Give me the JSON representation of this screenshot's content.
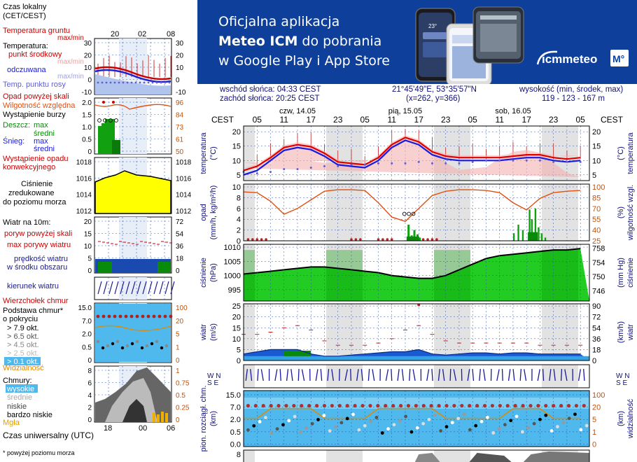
{
  "banner": {
    "line1": "Oficjalna aplikacja",
    "line2_bold": "Meteo ICM",
    "line2_rest": " do pobrania",
    "line3": "w Google Play i App Store",
    "logo_text": "icmmeteo",
    "logo_badge": "M°",
    "phone_temp": "23°"
  },
  "info": {
    "sunrise": "wschód słońca: 04:33 CEST",
    "sunset": "zachód słońca: 20:25 CEST",
    "coords": "21°45'49\"E, 53°35'57\"N",
    "grid": "(x=262, y=366)",
    "elev_label": "wysokość (min, środek, max)",
    "elev_values": "119 - 123 - 167 m"
  },
  "legend": {
    "local_time": "Czas lokalny",
    "local_time_2": "(CET/CEST)",
    "local_ticks": [
      "20",
      "02",
      "08"
    ],
    "utc_label": "Czas uniwersalny (UTC)",
    "utc_ticks": [
      "18",
      "00",
      "06"
    ],
    "footnote": "* powyżej poziomu morza",
    "temp": {
      "ground": "Temperatura gruntu",
      "maxmin": "max/min",
      "title": "Temperatura:",
      "mid": "punkt środkowy",
      "maxmin2": "max/min",
      "feel": "odczuwana",
      "maxmin3": "max/min",
      "dew": "Temp. punktu rosy",
      "ticks_left": [
        "30",
        "20",
        "10",
        "0",
        "-10"
      ],
      "ticks_right": [
        "30",
        "20",
        "10",
        "0",
        "-10"
      ]
    },
    "precip": {
      "over": "Opad powyżej skali",
      "humidity": "Wilgotność względna",
      "storm": "Wystąpienie burzy",
      "rain_label": "Deszcz:",
      "rain_max": "max",
      "rain_mid": "średni",
      "snow_label": "Śnieg:",
      "snow_max": "max",
      "snow_mid": "średni",
      "occurrence": "Wystąpienie opadu",
      "convective": "konwekcyjnego",
      "ticks_left": [
        "2.0",
        "1.5",
        "1.0",
        "0.5",
        "0"
      ],
      "ticks_right": [
        "96",
        "84",
        "73",
        "61",
        "50"
      ]
    },
    "pressure": {
      "l1": "Ciśnienie",
      "l2": "zredukowane",
      "l3": "do poziomu morza",
      "ticks_left": [
        "1018",
        "1016",
        "1014",
        "1012"
      ],
      "ticks_right": [
        "1018",
        "1016",
        "1014",
        "1012"
      ]
    },
    "wind": {
      "title": "Wiatr na 10m:",
      "over": "poryw powyżej skali",
      "gust": "max porywy wiatru",
      "speed": "prędkość wiatru",
      "area": "w środku obszaru",
      "ticks_left": [
        "20",
        "15",
        "10",
        "5",
        "0"
      ],
      "ticks_right": [
        "72",
        "54",
        "36",
        "18",
        "0"
      ]
    },
    "direction": "kierunek wiatru",
    "clouds": {
      "top": "Wierzchołek chmur",
      "base": "Podstawa chmur*",
      "cover": "o pokryciu",
      "o79": "> 7.9 okt.",
      "o65": "> 6.5 okt.",
      "o45": "> 4.5 okt.",
      "o25": "> 2.5 okt.",
      "o01": "> 0.1 okt.",
      "visibility": "Widzialność",
      "ticks_left": [
        "15.0",
        "7.0",
        "2.0",
        "0.5",
        "0"
      ],
      "ticks_right": [
        "100",
        "20",
        "5",
        "1",
        "0"
      ]
    },
    "layers": {
      "title": "Chmury:",
      "high": "wysokie",
      "mid": "średnie",
      "low": "niskie",
      "vlow": "bardzo niskie",
      "fog": "Mgła",
      "ticks_left": [
        "8",
        "6",
        "4",
        "2",
        "0"
      ],
      "ticks_right": [
        "1",
        "0.75",
        "0.5",
        "0.25",
        "0"
      ]
    }
  },
  "main": {
    "cest": "CEST",
    "days": [
      "czw, 14.05",
      "pią, 15.05",
      "sob, 16.05"
    ],
    "hour_ticks": [
      "05",
      "11",
      "17",
      "23",
      "05",
      "11",
      "17",
      "23",
      "05",
      "11",
      "17",
      "23",
      "05"
    ],
    "temp": {
      "label_l": "temperatura",
      "unit_l": "(°C)",
      "label_r": "temperatura",
      "unit_r": "(°C)",
      "ticks": [
        "20",
        "15",
        "10",
        "5"
      ]
    },
    "precip": {
      "label_l": "opad",
      "unit_l": "(mm/h, kg/m²/h)",
      "label_r": "wilgotność wzgl.",
      "unit_r": "(%)",
      "ticks_l": [
        "10",
        "8",
        "6",
        "4",
        "2",
        "0"
      ],
      "ticks_r": [
        "100",
        "85",
        "70",
        "55",
        "40",
        "25"
      ]
    },
    "pressure": {
      "label_l": "ciśnienie",
      "unit_l": "(hPa)",
      "label_r": "ciśnienie",
      "unit_r": "(mm Hg)",
      "ticks_l": [
        "1010",
        "1005",
        "1000",
        "995"
      ],
      "ticks_r": [
        "758",
        "754",
        "750",
        "746"
      ]
    },
    "wind": {
      "label_l": "wiatr",
      "unit_l": "(m/s)",
      "label_r": "wiatr",
      "unit_r": "(km/h)",
      "ticks_l": [
        "25",
        "20",
        "15",
        "10",
        "5",
        "0"
      ],
      "ticks_r": [
        "90",
        "72",
        "54",
        "36",
        "18",
        "0"
      ]
    },
    "dir": {
      "label": "W N",
      "label2": "S E"
    },
    "clouds": {
      "label_l": "pion. rozciągł. chm.",
      "unit_l": "(km)",
      "label_r": "widzialność",
      "unit_r": "(km)",
      "ticks_l": [
        "15.0",
        "7.0",
        "2.0",
        "0.5",
        "0.0"
      ],
      "ticks_r": [
        "100",
        "20",
        "5",
        "1",
        "0"
      ]
    },
    "layers": {
      "ticks_l": [
        "8"
      ]
    }
  },
  "chart_data": {
    "type": "line",
    "title": "",
    "x_hours_local": [
      2,
      5,
      8,
      11,
      14,
      17,
      20,
      23,
      26,
      29,
      32,
      35,
      38,
      41,
      44,
      47,
      50,
      53,
      56,
      59,
      62,
      65,
      68,
      71,
      74,
      77
    ],
    "temperature_mid": [
      6.5,
      8,
      11,
      14.5,
      15.5,
      14.8,
      12.5,
      9.5,
      9,
      8.5,
      11,
      15.5,
      18,
      16.5,
      13,
      11.5,
      11,
      11,
      11,
      11,
      11.5,
      12,
      12,
      11,
      10.5,
      11
    ],
    "temperature_feel": [
      5,
      6.5,
      10,
      13.5,
      14.5,
      13.8,
      11.5,
      8.5,
      8,
      7.5,
      10,
      14.5,
      17,
      15.5,
      12,
      10.5,
      10,
      10,
      10,
      10,
      10.5,
      11,
      11,
      10,
      9.5,
      10
    ],
    "dew_point": [
      6,
      5.5,
      6,
      7,
      7,
      7.5,
      8,
      8,
      8.5,
      8.5,
      9,
      9,
      9,
      9.5,
      9,
      9,
      9,
      9.5,
      10,
      10,
      10,
      10,
      10,
      9.5,
      9.5,
      9.5
    ],
    "humidity": [
      93,
      92,
      80,
      62,
      70,
      82,
      94,
      96,
      96,
      95,
      78,
      58,
      52,
      70,
      88,
      94,
      96,
      96,
      95,
      92,
      78,
      68,
      84,
      92,
      94,
      95
    ],
    "pressure": [
      1000.5,
      1001,
      1001.5,
      1002,
      1002.5,
      1003,
      1003,
      1002.5,
      1002,
      1001.5,
      1001,
      1000,
      999.5,
      999,
      999,
      1000,
      1002,
      1004,
      1006,
      1007,
      1007.5,
      1008,
      1008.5,
      1009,
      1009,
      1009.5
    ],
    "wind_speed": [
      3,
      4,
      5,
      5,
      5,
      3,
      2,
      2,
      2.5,
      3,
      3.5,
      4,
      4,
      5,
      3,
      2.5,
      3,
      3.5,
      3.5,
      3,
      3.5,
      3.5,
      3,
      3,
      3,
      3
    ],
    "wind_gust": [
      12,
      12,
      13,
      15,
      16,
      14,
      9,
      7,
      7,
      7,
      8,
      10,
      14,
      16,
      12,
      9,
      8,
      8,
      8,
      8,
      8,
      8,
      7,
      7,
      7,
      7
    ],
    "xlabel": "",
    "ylabel": ""
  }
}
